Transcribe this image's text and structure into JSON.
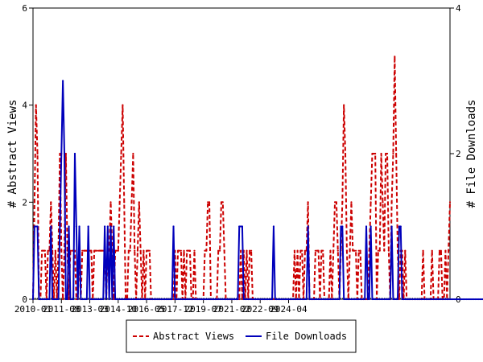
{
  "chart_data": {
    "type": "line",
    "title": "",
    "x_start": "2010-01",
    "x_end": "2025-09",
    "x_tick_labels": [
      "2010-01",
      "2011-08",
      "2013-03",
      "2014-10",
      "2016-05",
      "2017-12",
      "2019-07",
      "2021-02",
      "2022-09",
      "2024-04"
    ],
    "y_left": {
      "label": "# Abstract Views",
      "range": [
        0,
        6
      ],
      "ticks": [
        0,
        2,
        4,
        6
      ]
    },
    "y_right": {
      "label": "# File Downloads",
      "range": [
        0,
        4
      ],
      "ticks": [
        0,
        2,
        4
      ]
    },
    "legend": {
      "position": "bottom"
    },
    "series": [
      {
        "name": "Abstract Views",
        "axis": "left",
        "color": "#cc0000",
        "style": "dashed",
        "values": [
          0,
          2,
          4,
          3,
          0,
          0,
          1,
          1,
          1,
          0,
          1,
          1,
          2,
          1,
          0,
          1,
          0,
          1,
          3,
          1,
          0,
          1,
          3,
          1,
          0,
          1,
          1,
          1,
          1,
          0,
          0,
          1,
          0,
          1,
          1,
          1,
          1,
          1,
          1,
          1,
          0,
          1,
          1,
          1,
          1,
          1,
          1,
          1,
          1,
          0,
          1,
          1,
          2,
          1,
          0,
          1,
          1,
          1,
          2,
          3,
          4,
          2,
          0,
          0,
          1,
          1,
          2,
          3,
          1,
          0,
          1,
          2,
          1,
          0,
          1,
          0,
          1,
          1,
          1,
          0,
          0,
          0,
          0,
          0,
          0,
          0,
          0,
          0,
          0,
          0,
          0,
          0,
          0,
          0,
          0,
          1,
          0,
          1,
          1,
          1,
          0,
          1,
          0,
          1,
          1,
          1,
          0,
          0,
          1,
          0,
          0,
          0,
          0,
          0,
          0,
          1,
          1,
          2,
          2,
          0,
          0,
          0,
          0,
          0,
          1,
          1,
          2,
          2,
          1,
          0,
          0,
          0,
          0,
          0,
          0,
          0,
          0,
          0,
          0,
          1,
          0,
          1,
          0,
          1,
          0,
          1,
          1,
          0,
          0,
          0,
          0,
          0,
          0,
          0,
          0,
          0,
          0,
          0,
          0,
          0,
          0,
          0,
          0,
          0,
          0,
          0,
          0,
          0,
          0,
          0,
          0,
          0,
          0,
          0,
          0,
          1,
          0,
          1,
          0,
          1,
          1,
          0,
          1,
          1,
          2,
          0,
          0,
          0,
          0,
          1,
          1,
          1,
          0,
          1,
          1,
          0,
          0,
          0,
          0,
          1,
          0,
          1,
          2,
          2,
          1,
          0,
          1,
          2,
          4,
          3,
          1,
          0,
          1,
          2,
          1,
          1,
          1,
          0,
          1,
          1,
          0,
          0,
          0,
          0,
          0,
          1,
          2,
          3,
          3,
          3,
          0,
          1,
          1,
          3,
          2,
          1,
          3,
          3,
          1,
          0,
          2,
          3,
          5,
          3,
          1,
          0,
          1,
          1,
          0,
          1,
          0,
          0,
          0,
          0,
          0,
          0,
          0,
          0,
          0,
          0,
          0,
          1,
          0,
          0,
          0,
          0,
          0,
          1,
          0,
          0,
          0,
          0,
          1,
          1,
          0,
          0,
          1,
          0,
          1,
          2
        ]
      },
      {
        "name": "File Downloads",
        "axis": "right",
        "color": "#0000bb",
        "style": "solid",
        "values": [
          0,
          1,
          1,
          1,
          0,
          0,
          0,
          0,
          0,
          0,
          0,
          0,
          1,
          0,
          0,
          0,
          0,
          0,
          1,
          2,
          3,
          2,
          0,
          0,
          1,
          0,
          0,
          0,
          2,
          1,
          0,
          1,
          0,
          0,
          0,
          0,
          0,
          1,
          0,
          0,
          0,
          0,
          0,
          0,
          0,
          0,
          0,
          0,
          1,
          0,
          1,
          0,
          1,
          0,
          1,
          0,
          0,
          0,
          0,
          0,
          0,
          0,
          0,
          0,
          0,
          0,
          0,
          0,
          0,
          0,
          0,
          0,
          0,
          0,
          0,
          0,
          0,
          0,
          0,
          0,
          0,
          0,
          0,
          0,
          0,
          0,
          0,
          0,
          0,
          0,
          0,
          0,
          0,
          0,
          1,
          0,
          0,
          0,
          0,
          0,
          0,
          0,
          0,
          0,
          0,
          0,
          0,
          0,
          0,
          0,
          0,
          0,
          0,
          0,
          0,
          0,
          0,
          0,
          0,
          0,
          0,
          0,
          0,
          0,
          0,
          0,
          0,
          0,
          0,
          0,
          0,
          0,
          0,
          0,
          0,
          0,
          0,
          0,
          1,
          1,
          1,
          0,
          0,
          0,
          0,
          0,
          0,
          0,
          0,
          0,
          0,
          0,
          0,
          0,
          0,
          0,
          0,
          0,
          0,
          0,
          0,
          1,
          0,
          0,
          0,
          0,
          0,
          0,
          0,
          0,
          0,
          0,
          0,
          0,
          0,
          0,
          0,
          0,
          0,
          0,
          0,
          0,
          0,
          0,
          1,
          0,
          0,
          0,
          0,
          0,
          0,
          0,
          0,
          0,
          0,
          0,
          0,
          0,
          0,
          0,
          0,
          0,
          0,
          0,
          0,
          0,
          1,
          1,
          0,
          0,
          0,
          0,
          0,
          0,
          0,
          0,
          0,
          0,
          0,
          0,
          0,
          0,
          0,
          1,
          0,
          0,
          1,
          0,
          0,
          0,
          0,
          0,
          0,
          0,
          0,
          0,
          0,
          0,
          0,
          0,
          1,
          0,
          0,
          0,
          0,
          1,
          1,
          0,
          0,
          0,
          0,
          0,
          0,
          0,
          0,
          0,
          0,
          0,
          0,
          0,
          0,
          0,
          0,
          0,
          0,
          0,
          0,
          0,
          0,
          0,
          0,
          0,
          0,
          0,
          0,
          0,
          0,
          0,
          0,
          0,
          0,
          0,
          0,
          0,
          0,
          0,
          0,
          0,
          0,
          0,
          0,
          0,
          0,
          0,
          0,
          0,
          0,
          0,
          0,
          0,
          0,
          0,
          0,
          0,
          0,
          0,
          0,
          0
        ]
      }
    ]
  }
}
